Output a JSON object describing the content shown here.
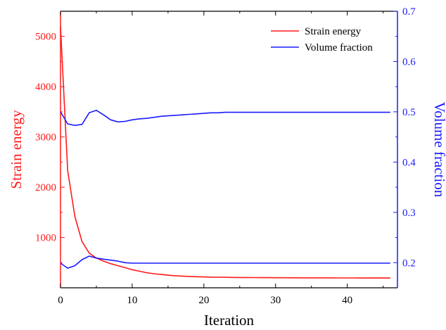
{
  "chart_data": {
    "type": "line",
    "xlabel": "Iteration",
    "ylabel_left": "Strain energy",
    "ylabel_right": "Volume fraction",
    "xlim": [
      0,
      47
    ],
    "ylim_left": [
      0,
      5500
    ],
    "ylim_right": [
      0.15,
      0.7
    ],
    "xticks": [
      0,
      10,
      20,
      30,
      40
    ],
    "yticks_left": [
      1000,
      2000,
      3000,
      4000,
      5000
    ],
    "yticks_right": [
      0.2,
      0.3,
      0.4,
      0.5,
      0.6,
      0.7
    ],
    "colors": {
      "strain": "#ff1a1a",
      "volume": "#1a1aff",
      "axis": "#000000"
    },
    "legend": {
      "position": "top-right",
      "entries": [
        {
          "label": "Strain energy",
          "color": "#ff1a1a"
        },
        {
          "label": "Volume fraction",
          "color": "#1a1aff"
        }
      ]
    },
    "series": [
      {
        "name": "Strain energy",
        "axis": "left",
        "color": "#ff1a1a",
        "x": [
          0,
          1,
          2,
          3,
          4,
          5,
          6,
          7,
          8,
          9,
          10,
          11,
          12,
          13,
          14,
          15,
          16,
          17,
          18,
          19,
          20,
          21,
          22,
          23,
          24,
          25,
          26,
          27,
          28,
          29,
          30,
          31,
          32,
          33,
          34,
          35,
          36,
          37,
          38,
          39,
          40,
          41,
          42,
          43,
          44,
          45,
          46
        ],
        "y": [
          5200,
          2330,
          1420,
          920,
          690,
          590,
          530,
          480,
          440,
          400,
          360,
          330,
          300,
          280,
          265,
          250,
          240,
          232,
          226,
          220,
          215,
          212,
          210,
          208,
          206,
          205,
          204,
          203,
          202,
          201,
          200,
          200,
          199,
          199,
          198,
          198,
          197,
          197,
          197,
          196,
          196,
          196,
          195,
          195,
          195,
          195,
          195
        ]
      },
      {
        "name": "Volume fraction (upper branch)",
        "axis": "right",
        "color": "#1a1aff",
        "x": [
          0,
          1,
          2,
          3,
          4,
          5,
          6,
          7,
          8,
          9,
          10,
          11,
          12,
          13,
          14,
          15,
          16,
          17,
          18,
          19,
          20,
          21,
          22,
          23,
          24,
          25,
          26,
          27,
          28,
          29,
          30,
          31,
          32,
          33,
          34,
          35,
          36,
          37,
          38,
          39,
          40,
          41,
          42,
          43,
          44,
          45,
          46
        ],
        "y": [
          0.5,
          0.476,
          0.473,
          0.475,
          0.498,
          0.503,
          0.494,
          0.484,
          0.48,
          0.481,
          0.484,
          0.486,
          0.487,
          0.489,
          0.491,
          0.492,
          0.493,
          0.494,
          0.495,
          0.496,
          0.497,
          0.498,
          0.498,
          0.499,
          0.499,
          0.499,
          0.499,
          0.499,
          0.499,
          0.499,
          0.499,
          0.499,
          0.499,
          0.499,
          0.499,
          0.499,
          0.499,
          0.499,
          0.499,
          0.499,
          0.499,
          0.499,
          0.499,
          0.499,
          0.499,
          0.499,
          0.499
        ]
      },
      {
        "name": "Volume fraction (lower branch)",
        "axis": "right",
        "color": "#1a1aff",
        "x": [
          0,
          1,
          2,
          3,
          4,
          5,
          6,
          7,
          8,
          9,
          10,
          11,
          12,
          13,
          14,
          15,
          16,
          17,
          18,
          19,
          20,
          21,
          22,
          23,
          24,
          25,
          26,
          27,
          28,
          29,
          30,
          31,
          32,
          33,
          34,
          35,
          36,
          37,
          38,
          39,
          40,
          41,
          42,
          43,
          44,
          45,
          46
        ],
        "y": [
          0.199,
          0.189,
          0.194,
          0.206,
          0.213,
          0.209,
          0.207,
          0.205,
          0.203,
          0.2,
          0.199,
          0.199,
          0.199,
          0.199,
          0.199,
          0.199,
          0.199,
          0.199,
          0.199,
          0.199,
          0.199,
          0.199,
          0.199,
          0.199,
          0.199,
          0.199,
          0.199,
          0.199,
          0.199,
          0.199,
          0.199,
          0.199,
          0.199,
          0.199,
          0.199,
          0.199,
          0.199,
          0.199,
          0.199,
          0.199,
          0.199,
          0.199,
          0.199,
          0.199,
          0.199,
          0.199,
          0.199
        ]
      }
    ]
  }
}
